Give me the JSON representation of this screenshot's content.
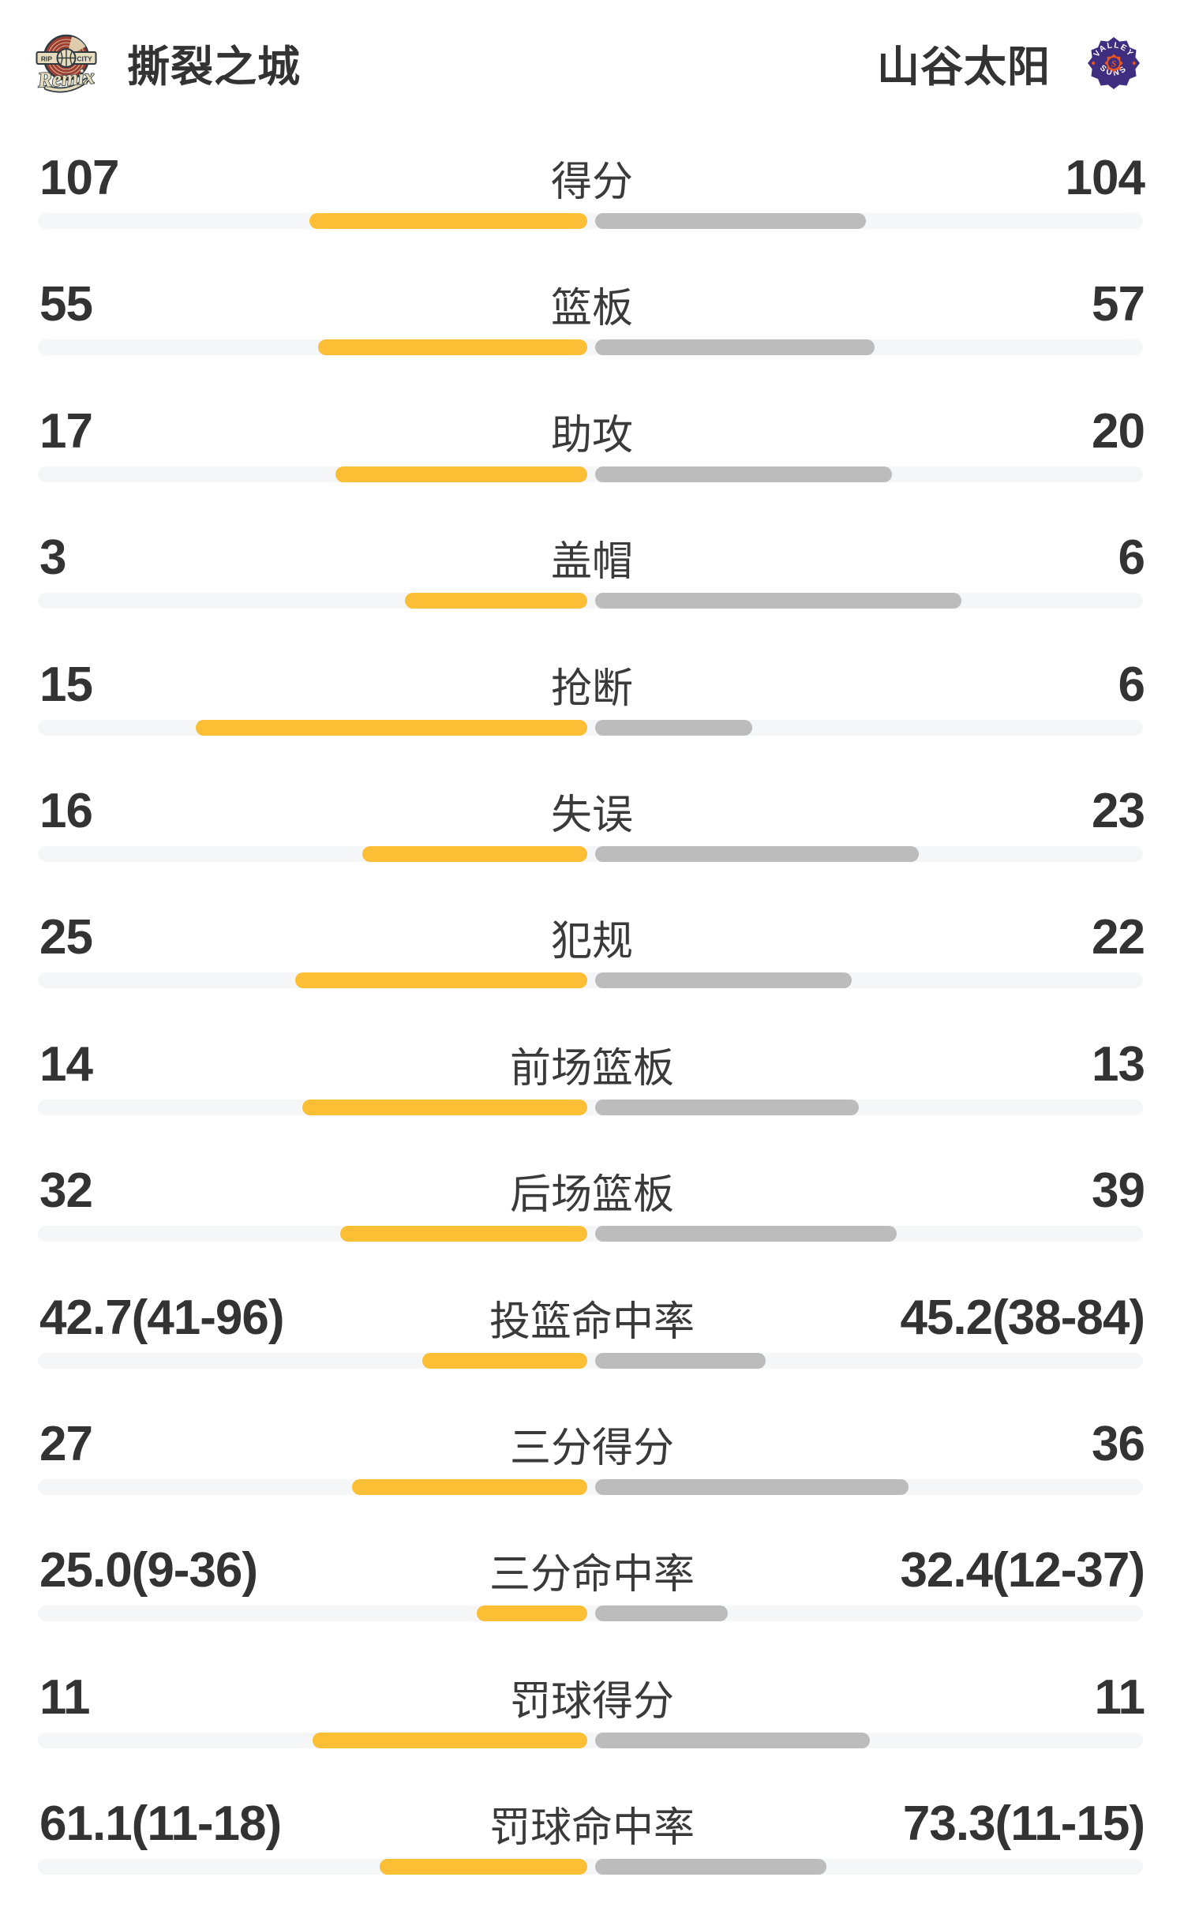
{
  "header": {
    "home": {
      "name": "撕裂之城",
      "logo": "rip-city-remix-badge"
    },
    "away": {
      "name": "山谷太阳",
      "logo": "valley-suns-badge"
    }
  },
  "colors": {
    "home_bar": "#FBBE34",
    "away_bar": "#BCBCBC",
    "bar_track": "#F5F6F8",
    "value_text": "#333333",
    "label_text": "#3A3A3A",
    "suns_purple": "#3F2E80",
    "suns_orange": "#E8551F",
    "remix_red": "#9E3C32",
    "remix_cream": "#E7DCBB",
    "remix_navy": "#2E3B42"
  },
  "chart_data": {
    "type": "bar",
    "subtype": "paired-horizontal-team-comparison",
    "legend_position": "none",
    "grid": false,
    "teams": {
      "home": "撕裂之城",
      "away": "山谷太阳"
    },
    "rows": [
      {
        "label": "得分",
        "home": "107",
        "away": "104",
        "home_bar_pct": 50.7,
        "away_bar_pct": 49.3
      },
      {
        "label": "篮板",
        "home": "55",
        "away": "57",
        "home_bar_pct": 49.1,
        "away_bar_pct": 50.9
      },
      {
        "label": "助攻",
        "home": "17",
        "away": "20",
        "home_bar_pct": 45.9,
        "away_bar_pct": 54.1
      },
      {
        "label": "盖帽",
        "home": "3",
        "away": "6",
        "home_bar_pct": 33.3,
        "away_bar_pct": 66.7
      },
      {
        "label": "抢断",
        "home": "15",
        "away": "6",
        "home_bar_pct": 71.4,
        "away_bar_pct": 28.6
      },
      {
        "label": "失误",
        "home": "16",
        "away": "23",
        "home_bar_pct": 41.0,
        "away_bar_pct": 59.0
      },
      {
        "label": "犯规",
        "home": "25",
        "away": "22",
        "home_bar_pct": 53.2,
        "away_bar_pct": 46.8
      },
      {
        "label": "前场篮板",
        "home": "14",
        "away": "13",
        "home_bar_pct": 51.9,
        "away_bar_pct": 48.1
      },
      {
        "label": "后场篮板",
        "home": "32",
        "away": "39",
        "home_bar_pct": 45.1,
        "away_bar_pct": 54.9
      },
      {
        "label": "投篮命中率",
        "home": "42.7(41-96)",
        "away": "45.2(38-84)",
        "home_bar_pct": 30.0,
        "away_bar_pct": 31.1
      },
      {
        "label": "三分得分",
        "home": "27",
        "away": "36",
        "home_bar_pct": 42.9,
        "away_bar_pct": 57.1
      },
      {
        "label": "三分命中率",
        "home": "25.0(9-36)",
        "away": "32.4(12-37)",
        "home_bar_pct": 20.1,
        "away_bar_pct": 24.2
      },
      {
        "label": "罚球得分",
        "home": "11",
        "away": "11",
        "home_bar_pct": 50.0,
        "away_bar_pct": 50.0
      },
      {
        "label": "罚球命中率",
        "home": "61.1(11-18)",
        "away": "73.3(11-15)",
        "home_bar_pct": 37.9,
        "away_bar_pct": 42.1
      }
    ]
  }
}
